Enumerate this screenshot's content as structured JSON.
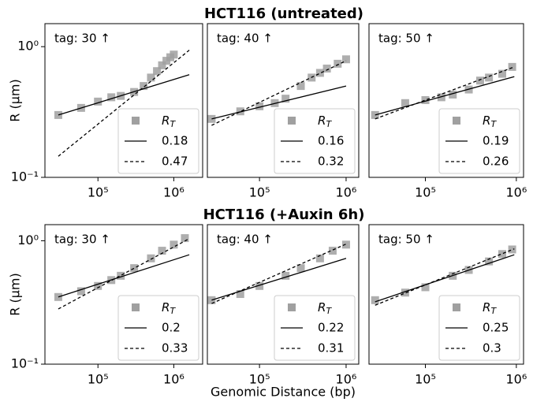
{
  "chart_data": [
    {
      "type": "scatter",
      "title": "HCT116 (untreated)",
      "ylabel": "R (μm)",
      "annotation": "tag: 30 ↑",
      "xscale": "log",
      "yscale": "log",
      "legend": "lower right",
      "xlim": [
        20000,
        2400000
      ],
      "ylim": [
        0.1,
        1.5
      ],
      "xticks": [
        {
          "value": 100000,
          "label": "10⁵"
        },
        {
          "value": 1000000,
          "label": "10⁶"
        }
      ],
      "yticks": [
        {
          "value": 0.1,
          "label": "10⁻¹"
        },
        {
          "value": 1,
          "label": "10⁰"
        }
      ],
      "series": [
        {
          "name": "R_T",
          "color": "#a0a0a0",
          "marker": "square",
          "x": [
            30000,
            60000,
            100000,
            150000,
            200000,
            300000,
            400000,
            500000,
            600000,
            700000,
            800000,
            900000,
            1000000
          ],
          "values": [
            0.3,
            0.34,
            0.38,
            0.41,
            0.42,
            0.45,
            0.5,
            0.58,
            0.65,
            0.72,
            0.78,
            0.83,
            0.87
          ]
        },
        {
          "name": "0.18",
          "color": "#000000",
          "linestyle": "solid",
          "x": [
            30000,
            1600000
          ],
          "values": [
            0.3,
            0.61
          ]
        },
        {
          "name": "0.47",
          "color": "#000000",
          "linestyle": "dashed",
          "x": [
            30000,
            1600000
          ],
          "values": [
            0.145,
            0.94
          ]
        }
      ]
    },
    {
      "type": "scatter",
      "annotation": "tag: 40 ↑",
      "xscale": "log",
      "yscale": "log",
      "legend": "lower right",
      "xlim": [
        25000,
        1400000
      ],
      "ylim": [
        0.1,
        1.5
      ],
      "xticks": [
        {
          "value": 100000,
          "label": "10⁵"
        },
        {
          "value": 1000000,
          "label": "10⁶"
        }
      ],
      "series": [
        {
          "name": "R_T",
          "color": "#a0a0a0",
          "marker": "square",
          "x": [
            28000,
            60000,
            100000,
            150000,
            200000,
            300000,
            400000,
            500000,
            600000,
            800000,
            1000000
          ],
          "values": [
            0.28,
            0.32,
            0.35,
            0.37,
            0.4,
            0.5,
            0.58,
            0.63,
            0.68,
            0.74,
            0.8
          ]
        },
        {
          "name": "0.16",
          "color": "#000000",
          "linestyle": "solid",
          "x": [
            28000,
            1000000
          ],
          "values": [
            0.28,
            0.5
          ]
        },
        {
          "name": "0.32",
          "color": "#000000",
          "linestyle": "dashed",
          "x": [
            28000,
            1000000
          ],
          "values": [
            0.25,
            0.78
          ]
        }
      ]
    },
    {
      "type": "scatter",
      "annotation": "tag: 50 ↑",
      "xscale": "log",
      "yscale": "log",
      "legend": "lower right",
      "xlim": [
        24000,
        1200000
      ],
      "ylim": [
        0.1,
        1.5
      ],
      "xticks": [
        {
          "value": 100000,
          "label": "10⁵"
        },
        {
          "value": 1000000,
          "label": "10⁶"
        }
      ],
      "series": [
        {
          "name": "R_T",
          "color": "#a0a0a0",
          "marker": "square",
          "x": [
            28000,
            60000,
            100000,
            150000,
            200000,
            300000,
            400000,
            500000,
            700000,
            900000
          ],
          "values": [
            0.3,
            0.37,
            0.39,
            0.41,
            0.43,
            0.47,
            0.55,
            0.58,
            0.62,
            0.7
          ]
        },
        {
          "name": "0.19",
          "color": "#000000",
          "linestyle": "solid",
          "x": [
            28000,
            950000
          ],
          "values": [
            0.3,
            0.59
          ]
        },
        {
          "name": "0.26",
          "color": "#000000",
          "linestyle": "dashed",
          "x": [
            28000,
            950000
          ],
          "values": [
            0.28,
            0.7
          ]
        }
      ]
    },
    {
      "type": "scatter",
      "title": "HCT116 (+Auxin 6h)",
      "ylabel": "R (μm)",
      "annotation": "tag: 30 ↑",
      "xscale": "log",
      "yscale": "log",
      "legend": "lower right",
      "xlim": [
        20000,
        2400000
      ],
      "ylim": [
        0.1,
        1.35
      ],
      "xticks": [
        {
          "value": 100000,
          "label": "10⁵"
        },
        {
          "value": 1000000,
          "label": "10⁶"
        }
      ],
      "yticks": [
        {
          "value": 0.1,
          "label": "10⁻¹"
        },
        {
          "value": 1,
          "label": "10⁰"
        }
      ],
      "series": [
        {
          "name": "R_T",
          "color": "#a0a0a0",
          "marker": "square",
          "x": [
            30000,
            60000,
            100000,
            150000,
            200000,
            300000,
            500000,
            700000,
            1000000,
            1400000
          ],
          "values": [
            0.35,
            0.39,
            0.43,
            0.48,
            0.52,
            0.6,
            0.72,
            0.83,
            0.93,
            1.05
          ]
        },
        {
          "name": "0.2",
          "color": "#000000",
          "linestyle": "solid",
          "x": [
            30000,
            1600000
          ],
          "values": [
            0.35,
            0.77
          ]
        },
        {
          "name": "0.33",
          "color": "#000000",
          "linestyle": "dashed",
          "x": [
            30000,
            1600000
          ],
          "values": [
            0.28,
            1.04
          ]
        }
      ]
    },
    {
      "type": "scatter",
      "xlabel": "Genomic Distance (bp)",
      "annotation": "tag: 40 ↑",
      "xscale": "log",
      "yscale": "log",
      "legend": "lower right",
      "xlim": [
        25000,
        1400000
      ],
      "ylim": [
        0.1,
        1.35
      ],
      "xticks": [
        {
          "value": 100000,
          "label": "10⁵"
        },
        {
          "value": 1000000,
          "label": "10⁶"
        }
      ],
      "series": [
        {
          "name": "R_T",
          "color": "#a0a0a0",
          "marker": "square",
          "x": [
            28000,
            60000,
            100000,
            200000,
            300000,
            500000,
            700000,
            1000000
          ],
          "values": [
            0.33,
            0.37,
            0.43,
            0.52,
            0.6,
            0.72,
            0.83,
            0.93
          ]
        },
        {
          "name": "0.22",
          "color": "#000000",
          "linestyle": "solid",
          "x": [
            28000,
            1000000
          ],
          "values": [
            0.33,
            0.72
          ]
        },
        {
          "name": "0.31",
          "color": "#000000",
          "linestyle": "dashed",
          "x": [
            28000,
            1000000
          ],
          "values": [
            0.31,
            0.94
          ]
        }
      ]
    },
    {
      "type": "scatter",
      "annotation": "tag: 50 ↑",
      "xscale": "log",
      "yscale": "log",
      "legend": "lower right",
      "xlim": [
        24000,
        1200000
      ],
      "ylim": [
        0.1,
        1.35
      ],
      "xticks": [
        {
          "value": 100000,
          "label": "10⁵"
        },
        {
          "value": 1000000,
          "label": "10⁶"
        }
      ],
      "series": [
        {
          "name": "R_T",
          "color": "#a0a0a0",
          "marker": "square",
          "x": [
            28000,
            60000,
            100000,
            200000,
            300000,
            500000,
            700000,
            900000
          ],
          "values": [
            0.33,
            0.38,
            0.42,
            0.52,
            0.58,
            0.68,
            0.78,
            0.85
          ]
        },
        {
          "name": "0.25",
          "color": "#000000",
          "linestyle": "solid",
          "x": [
            28000,
            950000
          ],
          "values": [
            0.32,
            0.77
          ]
        },
        {
          "name": "0.3",
          "color": "#000000",
          "linestyle": "dashed",
          "x": [
            28000,
            950000
          ],
          "values": [
            0.3,
            0.86
          ]
        }
      ]
    }
  ]
}
